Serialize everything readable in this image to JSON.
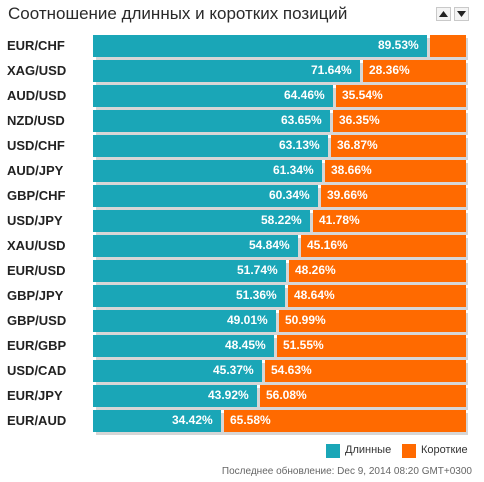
{
  "title": "Соотношение длинных и коротких позиций",
  "colors": {
    "long": "#1aa6b7",
    "short": "#ff6a00",
    "shadow": "#d6d6d6"
  },
  "controls": {
    "up_icon": "arrow-up-icon",
    "down_icon": "arrow-down-icon"
  },
  "chart_data": {
    "type": "bar",
    "orientation": "horizontal",
    "stacked": true,
    "categories": [
      "EUR/CHF",
      "XAG/USD",
      "AUD/USD",
      "NZD/USD",
      "USD/CHF",
      "AUD/JPY",
      "GBP/CHF",
      "USD/JPY",
      "XAU/USD",
      "EUR/USD",
      "GBP/JPY",
      "GBP/USD",
      "EUR/GBP",
      "USD/CAD",
      "EUR/JPY",
      "EUR/AUD"
    ],
    "series": [
      {
        "name": "Длинные",
        "values": [
          89.53,
          71.64,
          64.46,
          63.65,
          63.13,
          61.34,
          60.34,
          58.22,
          54.84,
          51.74,
          51.36,
          49.01,
          48.45,
          45.37,
          43.92,
          34.42
        ]
      },
      {
        "name": "Короткие",
        "values": [
          10.47,
          28.36,
          35.54,
          36.35,
          36.87,
          38.66,
          39.66,
          41.78,
          45.16,
          48.26,
          48.64,
          50.99,
          51.55,
          54.63,
          56.08,
          65.58
        ]
      }
    ],
    "value_labels": {
      "long": [
        "89.53%",
        "71.64%",
        "64.46%",
        "63.65%",
        "63.13%",
        "61.34%",
        "60.34%",
        "58.22%",
        "54.84%",
        "51.74%",
        "51.36%",
        "49.01%",
        "48.45%",
        "45.37%",
        "43.92%",
        "34.42%"
      ],
      "short": [
        "",
        "28.36%",
        "35.54%",
        "36.35%",
        "36.87%",
        "38.66%",
        "39.66%",
        "41.78%",
        "45.16%",
        "48.26%",
        "48.64%",
        "50.99%",
        "51.55%",
        "54.63%",
        "56.08%",
        "65.58%"
      ]
    },
    "xlim": [
      0,
      100
    ],
    "legend_position": "bottom-right"
  },
  "legend": {
    "long": "Длинные",
    "short": "Короткие"
  },
  "footer": "Последнее обновление: Dec 9, 2014 08:20 GMT+0300"
}
